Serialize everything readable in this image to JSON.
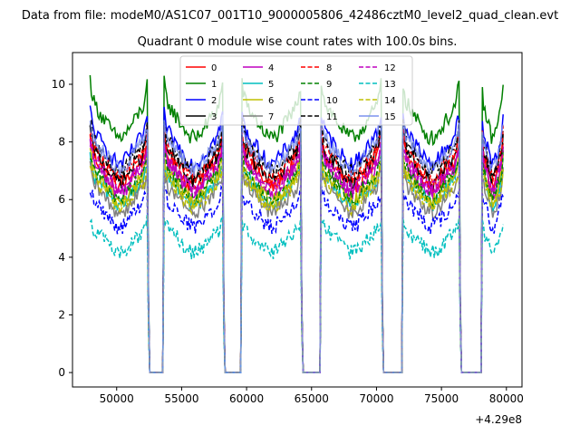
{
  "chart_data": {
    "type": "line",
    "suptitle": "Data from file: modeM0/AS1C07_001T10_9000005806_42486cztM0_level2_quad_clean.evt",
    "title": "Quadrant 0 module wise count rates with 100.0s bins.",
    "xlabel": "",
    "ylabel": "",
    "x_offset_label": "+4.29e8",
    "xlim": [
      46600,
      81200
    ],
    "ylim": [
      -0.5,
      11.1
    ],
    "x_ticks": [
      50000,
      55000,
      60000,
      65000,
      70000,
      75000,
      80000
    ],
    "x_tick_labels": [
      "50000",
      "55000",
      "60000",
      "65000",
      "70000",
      "75000",
      "80000"
    ],
    "y_ticks": [
      0,
      2,
      4,
      6,
      8,
      10
    ],
    "y_tick_labels": [
      "0",
      "2",
      "4",
      "6",
      "8",
      "10"
    ],
    "legend": {
      "location": "top-center",
      "ncol": 4
    },
    "orbit_segments": [
      {
        "start": 47950,
        "end": 52500
      },
      {
        "start": 53600,
        "end": 58300
      },
      {
        "start": 59600,
        "end": 64300
      },
      {
        "start": 65700,
        "end": 70500
      },
      {
        "start": 72000,
        "end": 76500
      },
      {
        "start": 78100,
        "end": 79800
      }
    ],
    "series": [
      {
        "name": "0",
        "color": "#ff0000",
        "dash": "solid",
        "base": 6.8
      },
      {
        "name": "1",
        "color": "#008000",
        "dash": "solid",
        "base": 8.5
      },
      {
        "name": "2",
        "color": "#0000ff",
        "dash": "solid",
        "base": 7.6
      },
      {
        "name": "3",
        "color": "#000000",
        "dash": "solid",
        "base": 7.0
      },
      {
        "name": "4",
        "color": "#bf00bf",
        "dash": "solid",
        "base": 6.6
      },
      {
        "name": "5",
        "color": "#00bfbf",
        "dash": "solid",
        "base": 6.2
      },
      {
        "name": "6",
        "color": "#bfbf00",
        "dash": "solid",
        "base": 6.3
      },
      {
        "name": "7",
        "color": "#808080",
        "dash": "solid",
        "base": 5.9
      },
      {
        "name": "8",
        "color": "#ff0000",
        "dash": "dashed",
        "base": 7.1
      },
      {
        "name": "9",
        "color": "#008000",
        "dash": "dashed",
        "base": 6.4
      },
      {
        "name": "10",
        "color": "#0000ff",
        "dash": "dashed",
        "base": 5.4
      },
      {
        "name": "11",
        "color": "#000000",
        "dash": "dashed",
        "base": 7.3
      },
      {
        "name": "12",
        "color": "#bf00bf",
        "dash": "dashed",
        "base": 6.7
      },
      {
        "name": "13",
        "color": "#00bfbf",
        "dash": "dashed",
        "base": 4.5
      },
      {
        "name": "14",
        "color": "#bfbf00",
        "dash": "dashed",
        "base": 6.1
      },
      {
        "name": "15",
        "color": "#7b92ee",
        "dash": "solid",
        "base": 7.4
      }
    ]
  }
}
